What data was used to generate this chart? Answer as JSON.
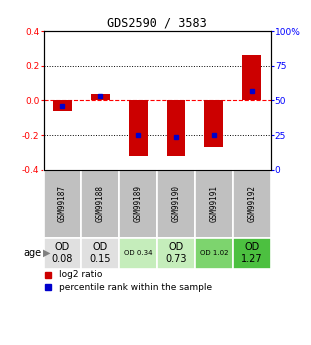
{
  "title": "GDS2590 / 3583",
  "samples": [
    "GSM99187",
    "GSM99188",
    "GSM99189",
    "GSM99190",
    "GSM99191",
    "GSM99192"
  ],
  "log2_bar_heights": [
    -0.06,
    0.04,
    -0.32,
    -0.32,
    -0.27,
    0.26
  ],
  "percentile_ranks_pct": [
    46,
    53,
    25,
    24,
    25,
    57
  ],
  "ylim": [
    -0.4,
    0.4
  ],
  "yticks_left": [
    -0.4,
    -0.2,
    0.0,
    0.2,
    0.4
  ],
  "yticks_right": [
    0,
    25,
    50,
    75,
    100
  ],
  "bar_color": "#cc0000",
  "dot_color": "#0000cc",
  "sample_bg_color": "#c0c0c0",
  "age_label": "age",
  "age_values": [
    "OD\n0.08",
    "OD\n0.15",
    "OD 0.34",
    "OD\n0.73",
    "OD 1.02",
    "OD\n1.27"
  ],
  "age_fontsize_small": [
    false,
    false,
    true,
    false,
    true,
    false
  ],
  "age_bg_colors": [
    "#e0e0e0",
    "#e0e0e0",
    "#c5edbb",
    "#c5edbb",
    "#7dd46e",
    "#4cc040"
  ],
  "legend_log2": "log2 ratio",
  "legend_pct": "percentile rank within the sample",
  "bar_width": 0.5
}
